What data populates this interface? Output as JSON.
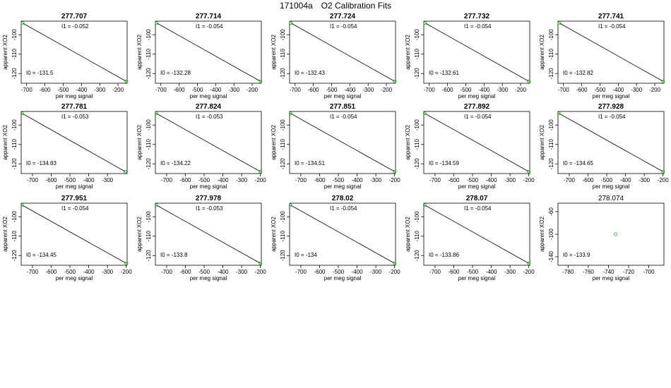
{
  "title": {
    "run": "171004a",
    "label": "O2 Calibration Fits"
  },
  "colors": {
    "line": "#000000",
    "point": "#22aa22",
    "frame": "#000000"
  },
  "chart_data": [
    {
      "type": "scatter",
      "title": "277.707",
      "xlabel": "per meg signal",
      "ylabel": "apparent XO2",
      "xticks": [
        -700,
        -600,
        -500,
        -400,
        -300,
        -200
      ],
      "xlim": [
        -730,
        -150
      ],
      "yticks": [
        -100,
        -110,
        -120
      ],
      "ylim": [
        -125,
        -93
      ],
      "fit_line": true,
      "points": [
        [
          -722,
          -94
        ],
        [
          -155,
          -124
        ]
      ],
      "i1_label": "I1 =",
      "i1": "-0.052",
      "i0_label": "I0 =",
      "i0": "-131.5"
    },
    {
      "type": "scatter",
      "title": "277.714",
      "xlabel": "per meg signal",
      "ylabel": "apparent XO2",
      "xticks": [
        -700,
        -600,
        -500,
        -400,
        -300,
        -200
      ],
      "xlim": [
        -730,
        -150
      ],
      "yticks": [
        -100,
        -110,
        -120
      ],
      "ylim": [
        -125,
        -93
      ],
      "fit_line": true,
      "points": [
        [
          -722,
          -94
        ],
        [
          -155,
          -124
        ]
      ],
      "i1_label": "I1 =",
      "i1": "-0.054",
      "i0_label": "I0 =",
      "i0": "-132.28"
    },
    {
      "type": "scatter",
      "title": "277.724",
      "xlabel": "per meg signal",
      "ylabel": "apparent XO2",
      "xticks": [
        -700,
        -600,
        -500,
        -400,
        -300,
        -200
      ],
      "xlim": [
        -730,
        -150
      ],
      "yticks": [
        -100,
        -110,
        -120
      ],
      "ylim": [
        -125,
        -93
      ],
      "fit_line": true,
      "points": [
        [
          -722,
          -94
        ],
        [
          -155,
          -124
        ]
      ],
      "i1_label": "I1 =",
      "i1": "-0.054",
      "i0_label": "I0 =",
      "i0": "-132.43"
    },
    {
      "type": "scatter",
      "title": "277.732",
      "xlabel": "per meg signal",
      "ylabel": "apparent XO2",
      "xticks": [
        -700,
        -600,
        -500,
        -400,
        -300,
        -200
      ],
      "xlim": [
        -730,
        -150
      ],
      "yticks": [
        -100,
        -110,
        -120
      ],
      "ylim": [
        -125,
        -93
      ],
      "fit_line": true,
      "points": [
        [
          -722,
          -94
        ],
        [
          -155,
          -124
        ]
      ],
      "i1_label": "I1 =",
      "i1": "-0.054",
      "i0_label": "I0 =",
      "i0": "-132.61"
    },
    {
      "type": "scatter",
      "title": "277.741",
      "xlabel": "per meg signal",
      "ylabel": "apparent XO2",
      "xticks": [
        -700,
        -600,
        -500,
        -400,
        -300,
        -200
      ],
      "xlim": [
        -730,
        -150
      ],
      "yticks": [
        -100,
        -110,
        -120
      ],
      "ylim": [
        -125,
        -93
      ],
      "fit_line": true,
      "points": [
        [
          -722,
          -94
        ],
        [
          -155,
          -124
        ]
      ],
      "i1_label": "I1 =",
      "i1": "-0.054",
      "i0_label": "I0 =",
      "i0": "-132.82"
    },
    {
      "type": "scatter",
      "title": "277.781",
      "xlabel": "per meg signal",
      "ylabel": "apparent XO2",
      "xticks": [
        -700,
        -600,
        -500,
        -400,
        -300
      ],
      "xlim": [
        -760,
        -195
      ],
      "yticks": [
        -100,
        -110,
        -120
      ],
      "ylim": [
        -125,
        -93
      ],
      "fit_line": true,
      "points": [
        [
          -755,
          -94
        ],
        [
          -205,
          -124
        ]
      ],
      "i1_label": "I1 =",
      "i1": "-0.053",
      "i0_label": "I0 =",
      "i0": "-134.83"
    },
    {
      "type": "scatter",
      "title": "277.824",
      "xlabel": "per meg signal",
      "ylabel": "apparent XO2",
      "xticks": [
        -700,
        -600,
        -500,
        -400,
        -300,
        -200
      ],
      "xlim": [
        -760,
        -195
      ],
      "yticks": [
        -100,
        -110,
        -120
      ],
      "ylim": [
        -125,
        -93
      ],
      "fit_line": true,
      "points": [
        [
          -755,
          -94
        ],
        [
          -200,
          -124
        ]
      ],
      "i1_label": "I1 =",
      "i1": "-0.053",
      "i0_label": "I0 =",
      "i0": "-134.22"
    },
    {
      "type": "scatter",
      "title": "277.851",
      "xlabel": "per meg signal",
      "ylabel": "apparent XO2",
      "xticks": [
        -700,
        -600,
        -500,
        -400,
        -300,
        -200
      ],
      "xlim": [
        -760,
        -195
      ],
      "yticks": [
        -100,
        -110,
        -120
      ],
      "ylim": [
        -125,
        -93
      ],
      "fit_line": true,
      "points": [
        [
          -755,
          -94
        ],
        [
          -200,
          -124
        ]
      ],
      "i1_label": "I1 =",
      "i1": "-0.054",
      "i0_label": "I0 =",
      "i0": "-134.51"
    },
    {
      "type": "scatter",
      "title": "277.892",
      "xlabel": "per meg signal",
      "ylabel": "apparent XO2",
      "xticks": [
        -700,
        -600,
        -500,
        -400,
        -300,
        -200
      ],
      "xlim": [
        -760,
        -195
      ],
      "yticks": [
        -100,
        -110,
        -120
      ],
      "ylim": [
        -125,
        -93
      ],
      "fit_line": true,
      "points": [
        [
          -755,
          -94
        ],
        [
          -200,
          -124
        ]
      ],
      "i1_label": "I1 =",
      "i1": "-0.054",
      "i0_label": "I0 =",
      "i0": "-134.59"
    },
    {
      "type": "scatter",
      "title": "277.928",
      "xlabel": "per meg signal",
      "ylabel": "apparent XO2",
      "xticks": [
        -700,
        -600,
        -500,
        -400,
        -300,
        -200
      ],
      "xlim": [
        -760,
        -195
      ],
      "yticks": [
        -100,
        -110,
        -120
      ],
      "ylim": [
        -125,
        -93
      ],
      "fit_line": true,
      "points": [
        [
          -755,
          -94
        ],
        [
          -200,
          -124
        ]
      ],
      "i1_label": "I1 =",
      "i1": "-0.054",
      "i0_label": "I0 =",
      "i0": "-134.65"
    },
    {
      "type": "scatter",
      "title": "277.951",
      "xlabel": "per meg signal",
      "ylabel": "apparent XO2",
      "xticks": [
        -700,
        -600,
        -500,
        -400,
        -300,
        -200
      ],
      "xlim": [
        -760,
        -195
      ],
      "yticks": [
        -100,
        -110,
        -120
      ],
      "ylim": [
        -125,
        -93
      ],
      "fit_line": true,
      "points": [
        [
          -755,
          -94
        ],
        [
          -200,
          -124
        ]
      ],
      "i1_label": "I1 =",
      "i1": "-0.054",
      "i0_label": "I0 =",
      "i0": "-134.45"
    },
    {
      "type": "scatter",
      "title": "277.978",
      "xlabel": "per meg signal",
      "ylabel": "apparent XO2",
      "xticks": [
        -700,
        -600,
        -500,
        -400,
        -300,
        -200
      ],
      "xlim": [
        -760,
        -195
      ],
      "yticks": [
        -100,
        -110,
        -120
      ],
      "ylim": [
        -125,
        -93
      ],
      "fit_line": true,
      "points": [
        [
          -755,
          -94
        ],
        [
          -200,
          -124
        ]
      ],
      "i1_label": "I1 =",
      "i1": "-0.053",
      "i0_label": "I0 =",
      "i0": "-133.8"
    },
    {
      "type": "scatter",
      "title": "278.02",
      "xlabel": "per meg signal",
      "ylabel": "apparent XO2",
      "xticks": [
        -700,
        -600,
        -500,
        -400,
        -300,
        -200
      ],
      "xlim": [
        -760,
        -195
      ],
      "yticks": [
        -100,
        -110,
        -120
      ],
      "ylim": [
        -125,
        -93
      ],
      "fit_line": true,
      "points": [
        [
          -755,
          -94
        ],
        [
          -200,
          -124
        ]
      ],
      "i1_label": "I1 =",
      "i1": "-0.054",
      "i0_label": "I0 =",
      "i0": "-134"
    },
    {
      "type": "scatter",
      "title": "278.07",
      "xlabel": "per meg signal",
      "ylabel": "apparent XO2",
      "xticks": [
        -700,
        -600,
        -500,
        -400,
        -300,
        -200
      ],
      "xlim": [
        -760,
        -195
      ],
      "yticks": [
        -100,
        -110,
        -120
      ],
      "ylim": [
        -125,
        -93
      ],
      "fit_line": true,
      "points": [
        [
          -755,
          -94
        ],
        [
          -200,
          -124
        ]
      ],
      "i1_label": "I1 =",
      "i1": "-0.054",
      "i0_label": "I0 =",
      "i0": "-133.86"
    },
    {
      "type": "scatter",
      "title": "278.074",
      "xlabel": "per meg signal",
      "ylabel": "apparent XO2",
      "title_bold": false,
      "xticks": [
        -780,
        -760,
        -740,
        -720,
        -700
      ],
      "xlim": [
        -790,
        -685
      ],
      "yticks": [
        -60,
        -100,
        -140
      ],
      "ylim": [
        -155,
        -45
      ],
      "fit_line": false,
      "points": [
        [
          -733,
          -100
        ]
      ],
      "i0_label": "I0 =",
      "i0": "-133.9"
    }
  ]
}
